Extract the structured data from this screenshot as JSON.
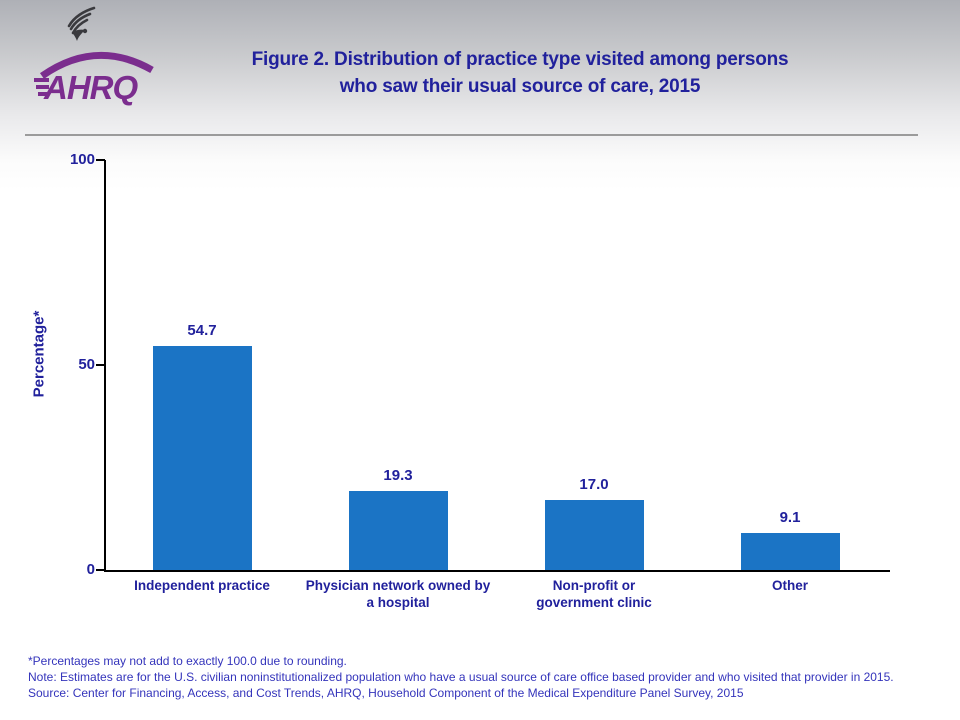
{
  "header": {
    "logo_text": "AHRQ",
    "title_line1": "Figure 2. Distribution of practice type visited among persons",
    "title_line2": "who saw their usual source of care, 2015"
  },
  "chart_data": {
    "type": "bar",
    "title": "Figure 2. Distribution of practice type visited among persons who saw their usual source of care, 2015",
    "categories": [
      "Independent practice",
      "Physician network owned by\na hospital",
      "Non-profit or\ngovernment clinic",
      "Other"
    ],
    "values": [
      54.7,
      19.3,
      17.0,
      9.1
    ],
    "value_labels": [
      "54.7",
      "19.3",
      "17.0",
      "9.1"
    ],
    "xlabel": "",
    "ylabel": "Percentage*",
    "ylim": [
      0,
      100
    ],
    "yticks": [
      0,
      50,
      100
    ],
    "grid": false,
    "legend": false,
    "bar_color_hex": "#1b74c5",
    "text_color_hex": "#21219c"
  },
  "footnotes": {
    "line1": "*Percentages may not add to exactly 100.0 due to rounding.",
    "line2": "Note: Estimates are for the U.S. civilian noninstitutionalized population who have a usual source of care office based provider and who visited that provider in 2015.",
    "line3": "Source: Center for Financing, Access, and Cost Trends, AHRQ, Household Component of the Medical Expenditure Panel Survey,  2015"
  }
}
